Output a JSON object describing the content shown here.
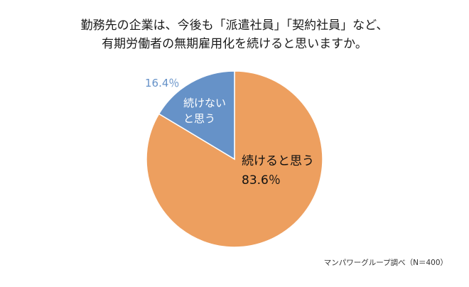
{
  "title_lines": [
    "勤務先の企業は、今後も「派遣社員」「契約社員」など、",
    "有期労働者の無期雇用化を続けると思いますか。"
  ],
  "source_note": "マンパワーグループ調べ（N＝400）",
  "chart_data": {
    "type": "pie",
    "title": "勤務先の企業は、今後も「派遣社員」「契約社員」など、有期労働者の無期雇用化を続けると思いますか。",
    "slices": [
      {
        "label_lines": [
          "続けると思う"
        ],
        "value": 83.6,
        "value_label": "83.6％",
        "color": "#ED9F5F",
        "label_color": "#111111",
        "value_color": "#111111",
        "label_placement": "inside"
      },
      {
        "label_lines": [
          "続けない",
          "と思う"
        ],
        "value": 16.4,
        "value_label": "16.4％",
        "color": "#6692C8",
        "label_color": "#ffffff",
        "value_color": "#6692C8",
        "label_placement": "inside-label-outside-value"
      }
    ],
    "start": "12 o'clock",
    "direction": "clockwise",
    "legend": "none"
  }
}
